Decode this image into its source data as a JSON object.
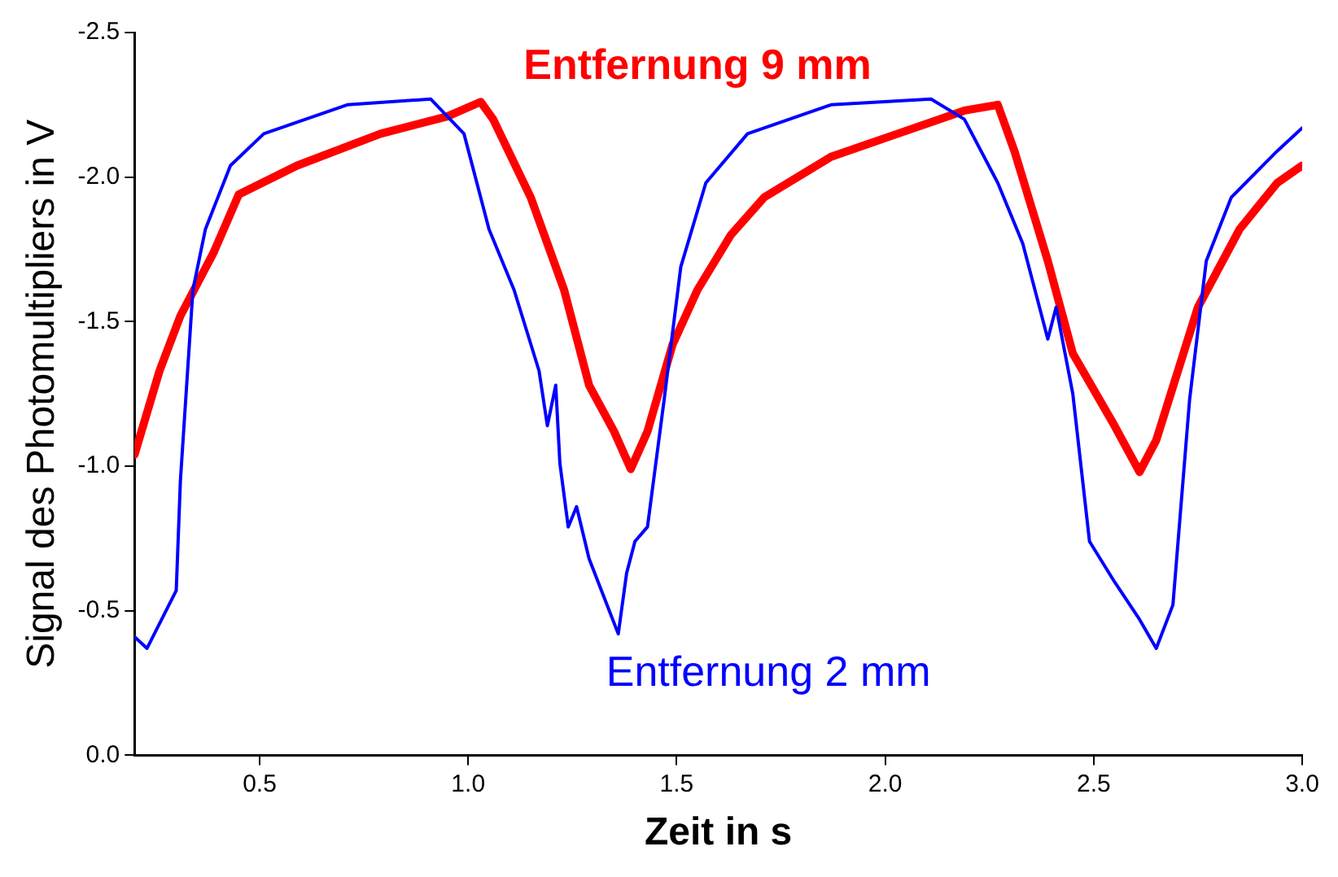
{
  "chart_data": {
    "type": "line",
    "xlabel": "Zeit in s",
    "ylabel": "Signal des Photomultipliers in V",
    "xlim": [
      0.2,
      3.0
    ],
    "xticks": [
      0.5,
      {
        "value": 1.0,
        "label": "1.0"
      },
      1.5,
      {
        "value": 2.0,
        "label": "2.0"
      },
      2.5,
      {
        "value": 3.0,
        "label": "3.0"
      }
    ],
    "ylim": [
      0,
      -2.5
    ],
    "yticks": [
      {
        "value": 0,
        "label": "0.0"
      },
      -0.5,
      {
        "value": -1.0,
        "label": "-1.0"
      },
      -1.5,
      {
        "value": -2.0,
        "label": "-2.0"
      },
      -2.5
    ],
    "grid": false,
    "legend": false,
    "marker": "none",
    "series": [
      {
        "name": "Entfernung 9 mm",
        "color": "#ff0000",
        "x": [
          0.2,
          0.26,
          0.31,
          0.39,
          0.45,
          0.59,
          0.79,
          0.95,
          1.03,
          1.06,
          1.15,
          1.23,
          1.29,
          1.35,
          1.39,
          1.43,
          1.49,
          1.55,
          1.63,
          1.71,
          1.87,
          2.03,
          2.19,
          2.27,
          2.31,
          2.39,
          2.45,
          2.55,
          2.61,
          2.65,
          2.75,
          2.85,
          2.94,
          3.0
        ],
        "values": [
          -1.04,
          -1.33,
          -1.52,
          -1.74,
          -1.94,
          -2.04,
          -2.15,
          -2.21,
          -2.26,
          -2.2,
          -1.93,
          -1.61,
          -1.28,
          -1.12,
          -0.99,
          -1.12,
          -1.42,
          -1.61,
          -1.8,
          -1.93,
          -2.07,
          -2.15,
          -2.23,
          -2.25,
          -2.09,
          -1.71,
          -1.39,
          -1.14,
          -0.98,
          -1.09,
          -1.55,
          -1.82,
          -1.98,
          -2.04
        ]
      },
      {
        "name": "Entfernung 2 mm",
        "color": "#0000ff",
        "x": [
          0.2,
          0.23,
          0.3,
          0.31,
          0.34,
          0.37,
          0.43,
          0.51,
          0.71,
          0.91,
          0.99,
          1.05,
          1.11,
          1.17,
          1.19,
          1.21,
          1.22,
          1.24,
          1.26,
          1.29,
          1.36,
          1.38,
          1.4,
          1.43,
          1.47,
          1.51,
          1.57,
          1.67,
          1.87,
          2.11,
          2.19,
          2.27,
          2.33,
          2.39,
          2.41,
          2.45,
          2.49,
          2.55,
          2.61,
          2.65,
          2.69,
          2.73,
          2.77,
          2.83,
          2.94,
          3.0
        ],
        "values": [
          -0.41,
          -0.37,
          -0.57,
          -0.95,
          -1.61,
          -1.82,
          -2.04,
          -2.15,
          -2.25,
          -2.27,
          -2.15,
          -1.82,
          -1.61,
          -1.33,
          -1.14,
          -1.28,
          -1.01,
          -0.79,
          -0.86,
          -0.68,
          -0.42,
          -0.63,
          -0.74,
          -0.79,
          -1.23,
          -1.69,
          -1.98,
          -2.15,
          -2.25,
          -2.27,
          -2.2,
          -1.98,
          -1.77,
          -1.44,
          -1.55,
          -1.25,
          -0.74,
          -0.6,
          -0.47,
          -0.37,
          -0.52,
          -1.23,
          -1.71,
          -1.93,
          -2.09,
          -2.17
        ]
      }
    ]
  }
}
